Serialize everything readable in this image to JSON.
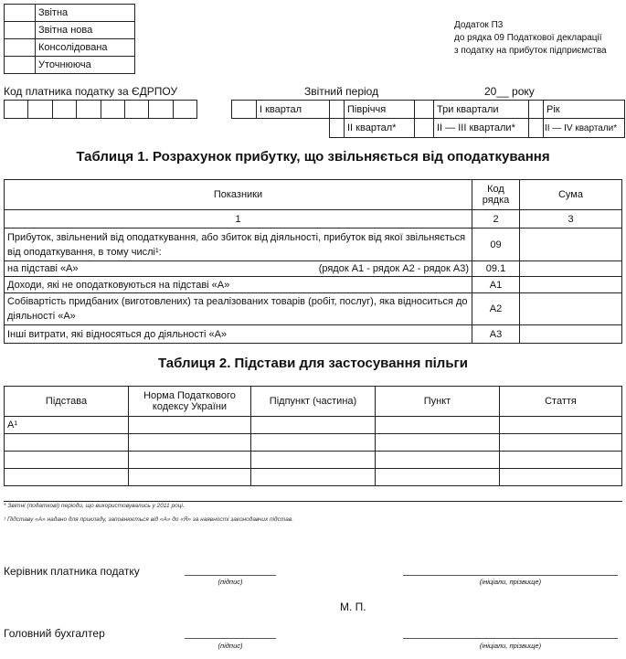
{
  "report_types": [
    "Звітна",
    "Звітна нова",
    "Консолідована",
    "Уточнююча"
  ],
  "appendix": [
    "Додаток П3",
    "до рядка 09 Податкової декларації",
    "з податку на прибуток підприємства"
  ],
  "edrpou_label": "Код платника податку за ЄДРПОУ",
  "period_label": "Звітний період",
  "year_label": "20__ року",
  "periods_row1": [
    "І квартал",
    "Півріччя",
    "Три квартали",
    "Рік"
  ],
  "periods_row2": [
    "ІІ квартал*",
    "ІІ — ІІІ квартали*",
    "ІІ — ІV квартали*"
  ],
  "table1": {
    "title": "Таблиця 1. Розрахунок прибутку, що звільняється від оподаткування",
    "headers": [
      "Показники",
      "Код рядка",
      "Сума"
    ],
    "numbers": [
      "1",
      "2",
      "3"
    ],
    "rows": [
      {
        "label": "Прибуток, звільнений від оподаткування, або збиток від діяльності, прибуток від якої звільняється від оподаткування, в тому числі¹:",
        "formula": "",
        "code": "09"
      },
      {
        "label": "на підставі «А»",
        "formula": "(рядок А1 - рядок А2 - рядок А3)",
        "code": "09.1"
      },
      {
        "label": "Доходи, які не оподатковуються на підставі «А»",
        "formula": "",
        "code": "А1"
      },
      {
        "label": "Собівартість придбаних (виготовлених) та реалізованих товарів (робіт, послуг), яка відноситься до діяльності «А»",
        "formula": "",
        "code": "А2"
      },
      {
        "label": "Інші витрати, які відносяться до діяльності «А»",
        "formula": "",
        "code": "А3"
      }
    ]
  },
  "table2": {
    "title": "Таблиця 2. Підстави для застосування пільги",
    "headers": [
      "Підстава",
      "Норма Податкового кодексу України",
      "Підпункт (частина)",
      "Пункт",
      "Стаття"
    ],
    "first_cell": "А¹"
  },
  "footnotes": [
    "* Звітні (податкові) періоди, що використовувались у 2011 році.",
    "¹ Підставу «А» надано для прикладу, заповнюється від «А» до «Я» за наявності законодавчих підстав."
  ],
  "signatures": {
    "head": "Керівник платника податку",
    "accountant": "Головний бухгалтер",
    "sign_caption": "(підпис)",
    "name_caption": "(ініціали, прізвище)",
    "stamp": "М. П."
  }
}
